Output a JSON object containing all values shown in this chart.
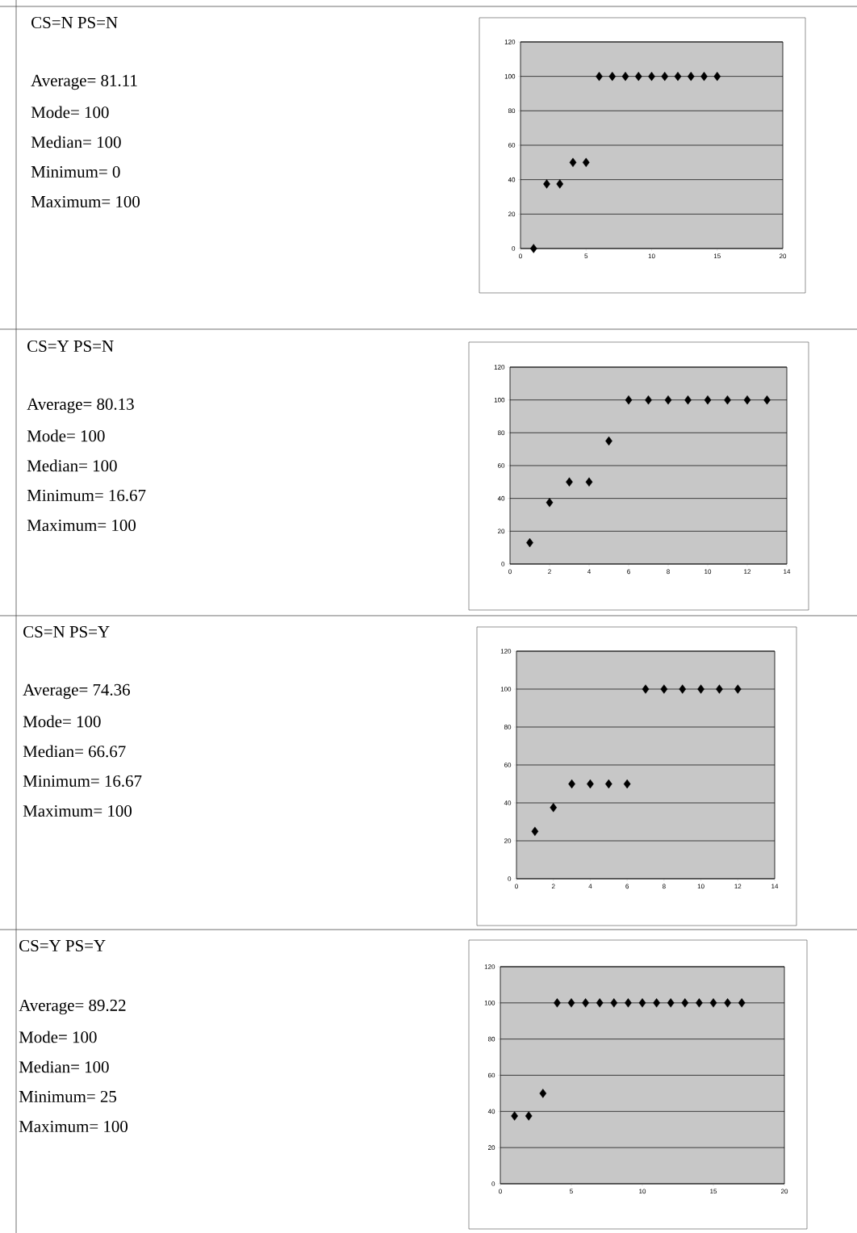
{
  "chart_data": [
    {
      "type": "other",
      "title": "CS=N PS=N",
      "annotations": [
        "Average= 81.11",
        "Mode= 100",
        "Median= 100",
        "Minimum= 0",
        "Maximum= 100"
      ]
    },
    {
      "type": "scatter",
      "x": [
        1,
        2,
        3,
        4,
        5,
        6,
        7,
        8,
        9,
        10,
        11,
        12,
        13,
        14,
        15
      ],
      "values": [
        0,
        37.5,
        37.5,
        50,
        50,
        100,
        100,
        100,
        100,
        100,
        100,
        100,
        100,
        100,
        100
      ],
      "color": "#000000",
      "xlim": [
        0,
        20
      ],
      "xticks": [
        0,
        5,
        10,
        15,
        20
      ],
      "ylim": [
        0,
        120
      ],
      "yticks": [
        0,
        20,
        40,
        60,
        80,
        100,
        120
      ],
      "grid": "y",
      "marker": "diamond"
    },
    {
      "type": "other",
      "title": "CS=Y PS=N",
      "annotations": [
        "Average= 80.13",
        "Mode= 100",
        "Median= 100",
        "Minimum= 16.67",
        "Maximum= 100"
      ]
    },
    {
      "type": "scatter",
      "x": [
        1,
        2,
        3,
        4,
        5,
        6,
        7,
        8,
        9,
        10,
        11,
        12,
        13
      ],
      "values": [
        13,
        37.5,
        50,
        50,
        75,
        100,
        100,
        100,
        100,
        100,
        100,
        100,
        100
      ],
      "color": "#000000",
      "xlim": [
        0,
        14
      ],
      "xticks": [
        0,
        2,
        4,
        6,
        8,
        10,
        12,
        14
      ],
      "ylim": [
        0,
        120
      ],
      "yticks": [
        0,
        20,
        40,
        60,
        80,
        100,
        120
      ],
      "grid": "y",
      "marker": "diamond"
    },
    {
      "type": "other",
      "title": "CS=N PS=Y",
      "annotations": [
        "Average= 74.36",
        "Mode= 100",
        "Median= 66.67",
        "Minimum= 16.67",
        "Maximum= 100"
      ]
    },
    {
      "type": "scatter",
      "x": [
        1,
        2,
        3,
        4,
        5,
        6,
        7,
        8,
        9,
        10,
        11,
        12
      ],
      "values": [
        25,
        37.5,
        50,
        50,
        50,
        50,
        100,
        100,
        100,
        100,
        100,
        100
      ],
      "color": "#000000",
      "xlim": [
        0,
        14
      ],
      "xticks": [
        0,
        2,
        4,
        6,
        8,
        10,
        12,
        14
      ],
      "ylim": [
        0,
        120
      ],
      "yticks": [
        0,
        20,
        40,
        60,
        80,
        100,
        120
      ],
      "grid": "y",
      "marker": "diamond"
    },
    {
      "type": "other",
      "title": "CS=Y PS=Y",
      "annotations": [
        "Average= 89.22",
        "Mode= 100",
        "Median=  100",
        "Minimum= 25",
        "Maximum= 100"
      ]
    },
    {
      "type": "scatter",
      "x": [
        1,
        2,
        3,
        4,
        5,
        6,
        7,
        8,
        9,
        10,
        11,
        12,
        13,
        14,
        15,
        16,
        17
      ],
      "values": [
        37.5,
        37.5,
        50,
        100,
        100,
        100,
        100,
        100,
        100,
        100,
        100,
        100,
        100,
        100,
        100,
        100,
        100
      ],
      "color": "#000000",
      "xlim": [
        0,
        20
      ],
      "xticks": [
        0,
        5,
        10,
        15,
        20
      ],
      "ylim": [
        0,
        120
      ],
      "yticks": [
        0,
        20,
        40,
        60,
        80,
        100,
        120
      ],
      "grid": "y",
      "marker": "diamond"
    }
  ]
}
